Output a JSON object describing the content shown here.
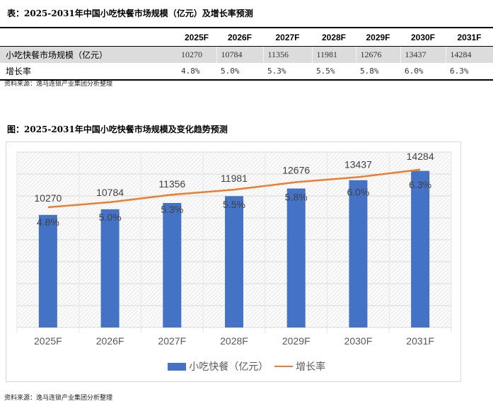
{
  "table": {
    "title": "表：2025-2031年中国小吃快餐市场规模（亿元）及增长率预测",
    "headers": [
      "",
      "2025F",
      "2026F",
      "2027F",
      "2028F",
      "2029F",
      "2030F",
      "2031F"
    ],
    "rows": [
      {
        "label": "小吃快餐市场规模（亿元）",
        "values": [
          "10270",
          "10784",
          "11356",
          "11981",
          "12676",
          "13437",
          "14284"
        ]
      },
      {
        "label": "增长率",
        "values": [
          "4.8%",
          "5.0%",
          "5.3%",
          "5.5%",
          "5.8%",
          "6.0%",
          "6.3%"
        ]
      }
    ],
    "source": "资料来源：逸马连锁产业集团分析整理"
  },
  "chart": {
    "title": "图：2025-2031年中国小吃快餐市场规模及变化趋势预测",
    "source": "资料来源：逸马连锁产业集团分析整理"
  },
  "chart_data": {
    "type": "bar",
    "categories": [
      "2025F",
      "2026F",
      "2027F",
      "2028F",
      "2029F",
      "2030F",
      "2031F"
    ],
    "series": [
      {
        "name": "小吃快餐（亿元）",
        "type": "bar",
        "axis": "primary",
        "color": "#4472c4",
        "values": [
          10270,
          10784,
          11356,
          11981,
          12676,
          13437,
          14284
        ],
        "labels": [
          "10270",
          "10784",
          "11356",
          "11981",
          "12676",
          "13437",
          "14284"
        ]
      },
      {
        "name": "增长率",
        "type": "line",
        "axis": "secondary",
        "color": "#ed7d31",
        "values": [
          4.8,
          5.0,
          5.3,
          5.5,
          5.8,
          6.0,
          6.3
        ],
        "labels": [
          "4.8%",
          "5.0%",
          "5.3%",
          "5.5%",
          "5.8%",
          "6.0%",
          "6.3%"
        ]
      }
    ],
    "ylim": [
      0,
      16000
    ],
    "y2lim": [
      0,
      7
    ],
    "grid": true,
    "legend": "bottom"
  }
}
